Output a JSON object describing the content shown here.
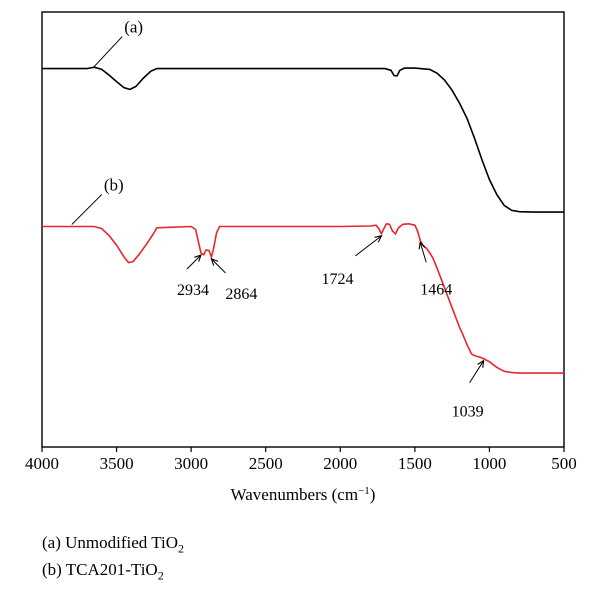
{
  "chart_data": {
    "type": "line",
    "xlabel": "Wavenumbers (cm",
    "xlabel_sup": "−1",
    "xlabel_close": ")",
    "xlim": [
      4000,
      500
    ],
    "ylim": [
      0,
      100
    ],
    "xticks": [
      4000,
      3500,
      3000,
      2500,
      2000,
      1500,
      1000,
      500
    ],
    "grid": false,
    "series": [
      {
        "label": "(a)",
        "color": "#000000",
        "points": [
          [
            4000,
            87.0
          ],
          [
            3800,
            87.0
          ],
          [
            3700,
            87.0
          ],
          [
            3650,
            87.3
          ],
          [
            3600,
            86.8
          ],
          [
            3550,
            85.5
          ],
          [
            3500,
            84.0
          ],
          [
            3450,
            82.6
          ],
          [
            3410,
            82.2
          ],
          [
            3370,
            82.9
          ],
          [
            3320,
            84.8
          ],
          [
            3270,
            86.4
          ],
          [
            3230,
            87.0
          ],
          [
            3000,
            87.0
          ],
          [
            2500,
            87.0
          ],
          [
            2000,
            87.0
          ],
          [
            1700,
            87.0
          ],
          [
            1660,
            86.6
          ],
          [
            1640,
            85.4
          ],
          [
            1620,
            85.3
          ],
          [
            1600,
            86.6
          ],
          [
            1570,
            87.1
          ],
          [
            1500,
            87.1
          ],
          [
            1400,
            86.8
          ],
          [
            1350,
            85.9
          ],
          [
            1300,
            84.3
          ],
          [
            1250,
            82.0
          ],
          [
            1200,
            79.0
          ],
          [
            1150,
            75.5
          ],
          [
            1100,
            71.0
          ],
          [
            1050,
            66.0
          ],
          [
            1000,
            61.5
          ],
          [
            950,
            58.0
          ],
          [
            900,
            55.5
          ],
          [
            850,
            54.4
          ],
          [
            800,
            54.1
          ],
          [
            700,
            54.0
          ],
          [
            500,
            54.0
          ]
        ]
      },
      {
        "label": "(b)",
        "color": "#e8262d",
        "points": [
          [
            4000,
            50.7
          ],
          [
            3700,
            50.7
          ],
          [
            3650,
            50.7
          ],
          [
            3600,
            50.2
          ],
          [
            3550,
            48.6
          ],
          [
            3500,
            46.4
          ],
          [
            3450,
            43.7
          ],
          [
            3420,
            42.4
          ],
          [
            3390,
            42.6
          ],
          [
            3350,
            44.2
          ],
          [
            3300,
            46.6
          ],
          [
            3250,
            49.2
          ],
          [
            3230,
            50.4
          ],
          [
            3000,
            50.7
          ],
          [
            2970,
            50.0
          ],
          [
            2950,
            47.0
          ],
          [
            2934,
            44.6
          ],
          [
            2915,
            44.2
          ],
          [
            2900,
            45.3
          ],
          [
            2880,
            45.2
          ],
          [
            2864,
            43.7
          ],
          [
            2850,
            45.5
          ],
          [
            2830,
            49.2
          ],
          [
            2810,
            50.7
          ],
          [
            2500,
            50.7
          ],
          [
            2000,
            50.7
          ],
          [
            1800,
            50.8
          ],
          [
            1760,
            51.0
          ],
          [
            1740,
            50.1
          ],
          [
            1724,
            49.0
          ],
          [
            1705,
            50.4
          ],
          [
            1690,
            51.3
          ],
          [
            1670,
            51.2
          ],
          [
            1650,
            49.6
          ],
          [
            1630,
            49.0
          ],
          [
            1610,
            50.4
          ],
          [
            1580,
            51.2
          ],
          [
            1540,
            51.3
          ],
          [
            1500,
            51.0
          ],
          [
            1480,
            49.5
          ],
          [
            1464,
            47.5
          ],
          [
            1445,
            46.3
          ],
          [
            1420,
            45.6
          ],
          [
            1400,
            44.6
          ],
          [
            1380,
            43.5
          ],
          [
            1350,
            41.0
          ],
          [
            1300,
            36.5
          ],
          [
            1250,
            32.0
          ],
          [
            1200,
            27.5
          ],
          [
            1180,
            26.0
          ],
          [
            1150,
            23.5
          ],
          [
            1120,
            21.4
          ],
          [
            1100,
            21.0
          ],
          [
            1060,
            20.6
          ],
          [
            1039,
            20.3
          ],
          [
            1000,
            19.6
          ],
          [
            950,
            18.3
          ],
          [
            900,
            17.4
          ],
          [
            850,
            17.1
          ],
          [
            800,
            17.0
          ],
          [
            500,
            17.0
          ]
        ]
      }
    ],
    "annotations": [
      {
        "text": "2934",
        "x": 2934,
        "y": 44.6
      },
      {
        "text": "2864",
        "x": 2864,
        "y": 43.7
      },
      {
        "text": "1724",
        "x": 1724,
        "y": 49.0
      },
      {
        "text": "1464",
        "x": 1464,
        "y": 47.5
      },
      {
        "text": "1039",
        "x": 1039,
        "y": 20.3
      }
    ]
  },
  "legend": [
    {
      "text": "(a) Unmodified TiO",
      "sub": "2"
    },
    {
      "text": "(b) TCA201-TiO",
      "sub": "2"
    }
  ]
}
